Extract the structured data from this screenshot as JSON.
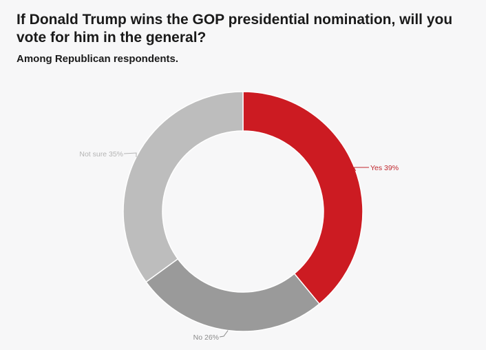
{
  "title": "If Donald Trump wins the GOP presidential nomination, will you vote for him in the general?",
  "subtitle": "Among Republican respondents.",
  "chart_data": {
    "type": "pie",
    "variant": "donut",
    "title": "If Donald Trump wins the GOP presidential nomination, will you vote for him in the general?",
    "subtitle": "Among Republican respondents.",
    "categories": [
      "Yes",
      "No",
      "Not sure"
    ],
    "values": [
      39,
      26,
      35
    ],
    "unit": "%",
    "labels": [
      "Yes 39%",
      "No 26%",
      "Not sure 35%"
    ],
    "colors": [
      "#cc1b22",
      "#9a9a9a",
      "#bdbdbd"
    ],
    "label_colors": [
      "#c0262d",
      "#8a8a8a",
      "#b4b4b4"
    ],
    "start": "top",
    "direction": "clockwise"
  }
}
